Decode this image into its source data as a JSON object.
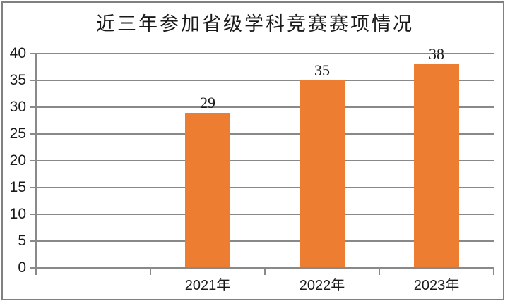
{
  "frame": {
    "background": "#ffffff",
    "border_color": "#808080"
  },
  "chart_data": {
    "type": "bar",
    "title": "近三年参加省级学科竞赛赛项情况",
    "categories": [
      "2021年",
      "2022年",
      "2023年"
    ],
    "values": [
      29,
      35,
      38
    ],
    "data_labels": [
      "29",
      "35",
      "38"
    ],
    "ylim": [
      0,
      40
    ],
    "yticks": [
      0,
      5,
      10,
      15,
      20,
      25,
      30,
      35,
      40
    ],
    "xlabel": "",
    "ylabel": "",
    "legend": "none",
    "grid": "horizontal-gridlines",
    "leading_empty_slot": true,
    "colors": {
      "bar": "#ED7D31",
      "gridline": "#898989",
      "axis": "#898989",
      "text": "#1a1a1a"
    }
  }
}
